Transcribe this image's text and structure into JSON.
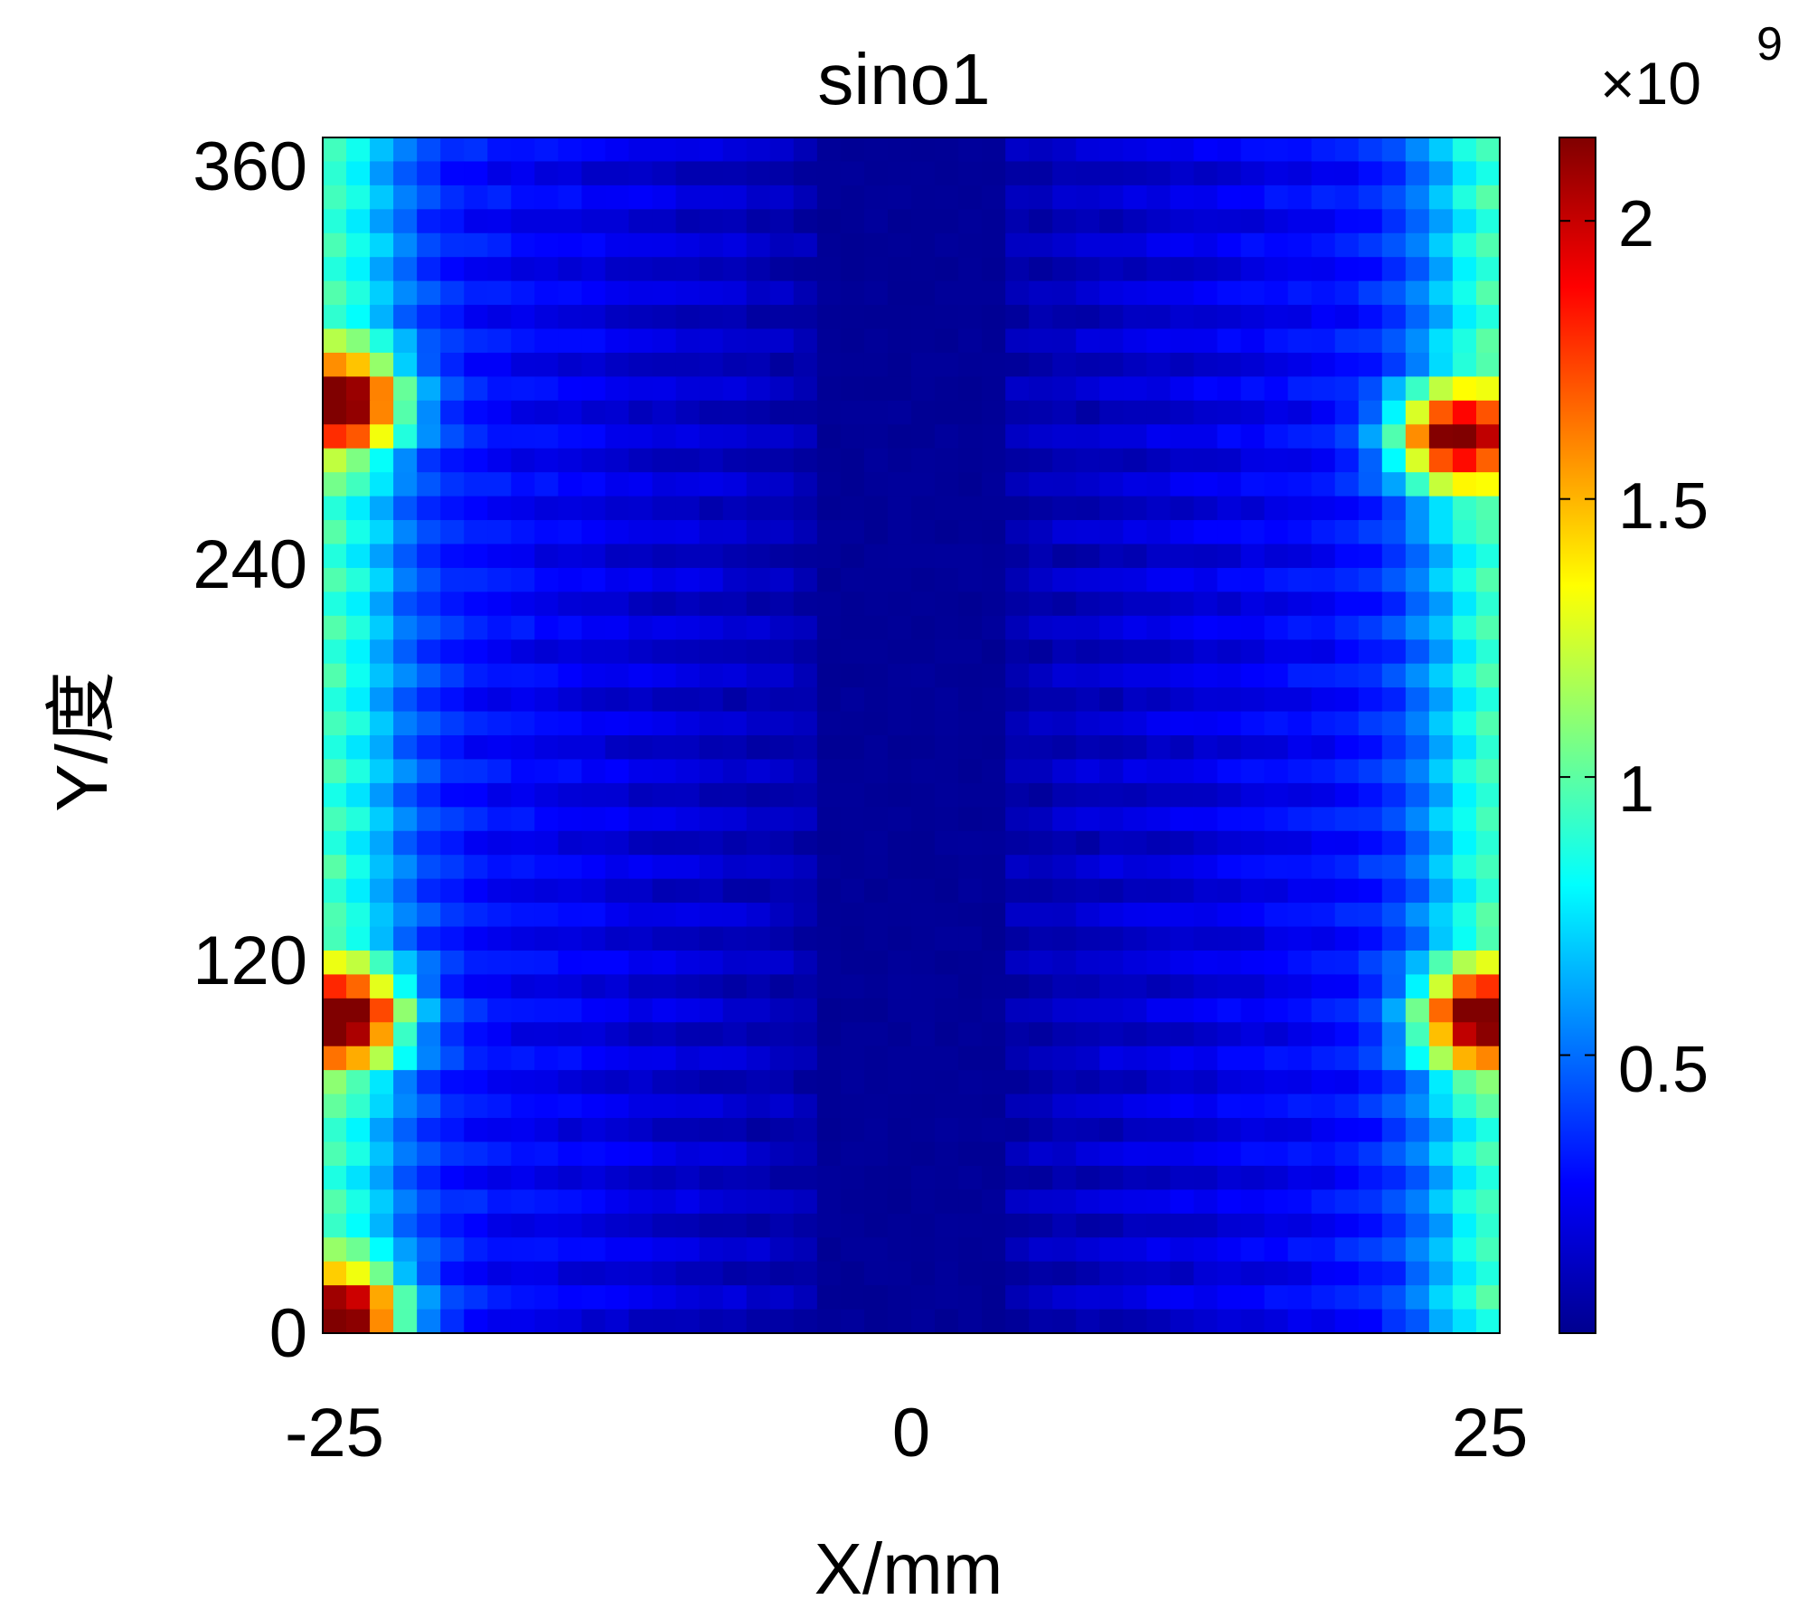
{
  "chart_data": {
    "type": "heatmap",
    "title": "sino1",
    "xlabel": "X/mm",
    "ylabel": "Y/度",
    "xlim": [
      -25,
      25
    ],
    "ylim": [
      0,
      360
    ],
    "xticks": [
      "-25",
      "0",
      "25"
    ],
    "yticks": [
      "0",
      "120",
      "240",
      "360"
    ],
    "colormap": "jet",
    "colorbar": {
      "multiplier_label": "×10",
      "multiplier_exponent": "9",
      "range": [
        0,
        2.15
      ],
      "ticks": [
        "0.5",
        "1",
        "1.5",
        "2"
      ],
      "tick_values": [
        0.5,
        1,
        1.5,
        2
      ]
    },
    "grid": "50 x 50 sinogram cells (X = detector position, Y = projection angle)",
    "value_range_x1e9": [
      0.05,
      2.15
    ],
    "hotspots_x1e9": [
      {
        "x_mm": -24,
        "y_deg": 95,
        "value": 2.1
      },
      {
        "x_mm": -24,
        "y_deg": 280,
        "value": 2.05
      },
      {
        "x_mm": 24,
        "y_deg": 95,
        "value": 2.05
      },
      {
        "x_mm": 23,
        "y_deg": 270,
        "value": 2.1
      },
      {
        "x_mm": -24,
        "y_deg": 5,
        "value": 2.0
      }
    ]
  }
}
